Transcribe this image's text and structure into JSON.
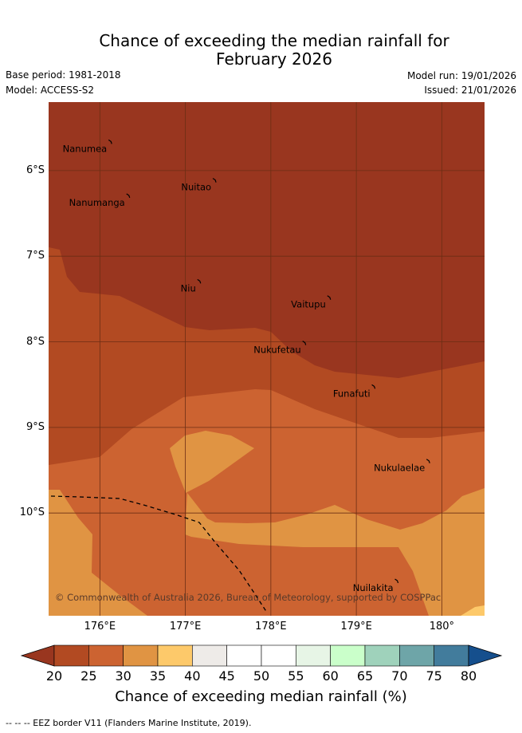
{
  "title": {
    "line1": "Chance of exceeding the median rainfall for",
    "line2": "February 2026"
  },
  "meta": {
    "base_period": "Base period: 1981-2018",
    "model": "Model: ACCESS-S2",
    "model_run": "Model run: 19/01/2026",
    "issued": "Issued: 21/01/2026"
  },
  "map": {
    "lat_range": [
      -11.2,
      -5.2
    ],
    "lon_range": [
      175.4,
      180.5
    ],
    "lat_ticks": [
      "6°S",
      "7°S",
      "8°S",
      "9°S",
      "10°S"
    ],
    "lon_ticks": [
      "176°E",
      "177°E",
      "178°E",
      "179°E",
      "180°"
    ],
    "islands": [
      {
        "name": "Nanumea",
        "lat": -5.66,
        "lon": 176.12
      },
      {
        "name": "Nuitao",
        "lat": -6.11,
        "lon": 177.34
      },
      {
        "name": "Nanumanga",
        "lat": -6.29,
        "lon": 176.33
      },
      {
        "name": "Niu",
        "lat": -7.29,
        "lon": 177.16
      },
      {
        "name": "Vaitupu",
        "lat": -7.48,
        "lon": 178.68
      },
      {
        "name": "Nukufetau",
        "lat": -8.01,
        "lon": 178.39
      },
      {
        "name": "Funafuti",
        "lat": -8.52,
        "lon": 179.2
      },
      {
        "name": "Nukulaelae",
        "lat": -9.39,
        "lon": 179.84
      },
      {
        "name": "Nuilakita",
        "lat": -10.79,
        "lon": 179.47
      }
    ],
    "eez_border_label": "EEZ border",
    "copyright": "© Commonwealth of Australia 2026, Bureau of Meteorology, supported by COSPPac"
  },
  "colorbar": {
    "ticks": [
      "20",
      "25",
      "30",
      "35",
      "40",
      "45",
      "50",
      "55",
      "60",
      "65",
      "70",
      "75",
      "80"
    ],
    "colors": [
      "#b24a22",
      "#cc6331",
      "#e09443",
      "#fdc96a",
      "#eeebe8",
      "#ffffff",
      "#ffffff",
      "#e7f5e6",
      "#caffca",
      "#9fd2bb",
      "#6ea5a8",
      "#427c9c"
    ],
    "under_color": "#99361f",
    "over_color": "#154f8d",
    "label": "Chance of exceeding median rainfall (%)"
  },
  "footer": "--  --  -- EEZ border V11 (Flanders Marine Institute, 2019).",
  "colors": {
    "band_lt20": "#99361f",
    "band_20_25": "#b24a22",
    "band_25_30": "#cc6331",
    "band_30_35": "#e09443",
    "band_35_40": "#fdc96a",
    "grid": "#6b2e14"
  }
}
